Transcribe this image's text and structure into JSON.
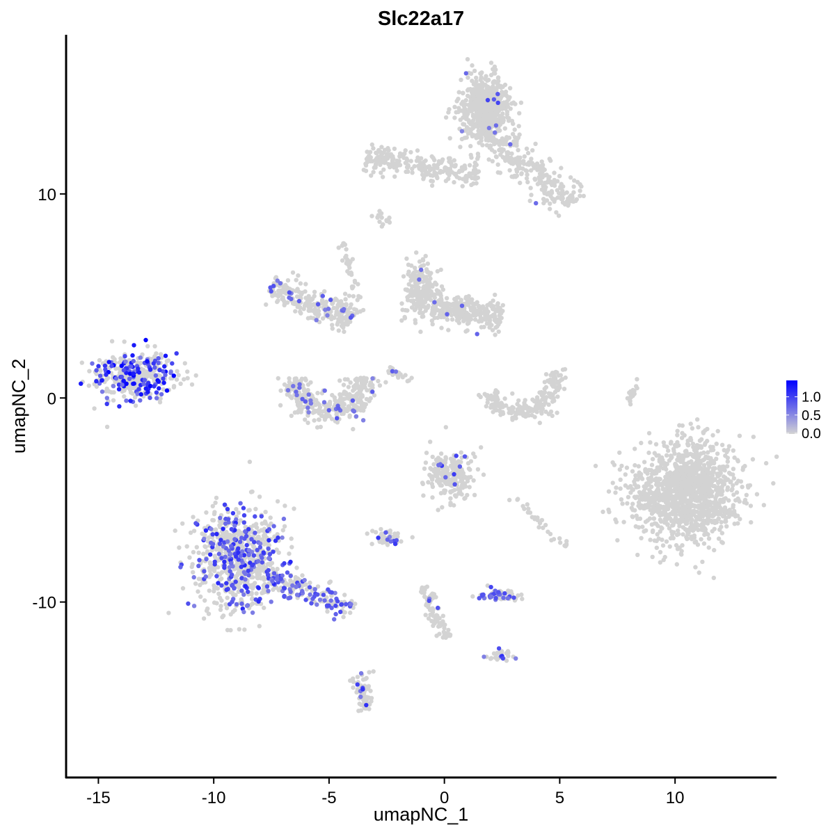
{
  "chart_data": {
    "type": "scatter",
    "title": "Slc22a17",
    "xlabel": "umapNC_1",
    "ylabel": "umapNC_2",
    "xlim": [
      -16.4,
      14.4
    ],
    "ylim": [
      -18.6,
      17.8
    ],
    "xticks": [
      -15,
      -10,
      -5,
      0,
      5,
      10
    ],
    "yticks": [
      -10,
      0,
      10
    ],
    "grid": false,
    "colors": {
      "low": "#d3d3d3",
      "high": "#0000ff"
    },
    "legend": {
      "position": "right",
      "ticks": [
        "1.0",
        "0.5",
        "0.0"
      ],
      "tick_values": [
        1.0,
        0.5,
        0.0
      ],
      "range": [
        0,
        1.45
      ]
    },
    "clusters": [
      {
        "shape": "blob",
        "center": [
          -13.3,
          1.1
        ],
        "spread": [
          0.85,
          0.6
        ],
        "n": 380,
        "expressing_fraction": 0.35,
        "max_value": 1.45
      },
      {
        "shape": "blob",
        "center": [
          -8.9,
          -7.9
        ],
        "spread": [
          0.95,
          1.25
        ],
        "n": 750,
        "expressing_fraction": 0.25,
        "max_value": 1.2
      },
      {
        "shape": "line",
        "from": [
          -7.6,
          -8.7
        ],
        "to": [
          -4.0,
          -10.4
        ],
        "width": 0.3,
        "n": 160,
        "expressing_fraction": 0.4,
        "max_value": 1.0
      },
      {
        "shape": "blob",
        "center": [
          1.8,
          14.0
        ],
        "spread": [
          0.55,
          0.8
        ],
        "n": 650,
        "expressing_fraction": 0.01,
        "max_value": 1.0
      },
      {
        "shape": "line",
        "from": [
          2.3,
          12.6
        ],
        "to": [
          5.6,
          9.4
        ],
        "width": 0.45,
        "n": 220,
        "expressing_fraction": 0.01,
        "max_value": 1.0
      },
      {
        "shape": "line",
        "from": [
          -3.4,
          11.8
        ],
        "to": [
          1.5,
          11.0
        ],
        "width": 0.3,
        "n": 260,
        "expressing_fraction": 0.0,
        "max_value": 0
      },
      {
        "shape": "blob",
        "center": [
          10.5,
          -4.6
        ],
        "spread": [
          1.15,
          1.2
        ],
        "n": 1300,
        "expressing_fraction": 0.0,
        "max_value": 0
      },
      {
        "shape": "blob",
        "center": [
          -1.0,
          5.2
        ],
        "spread": [
          0.35,
          0.7
        ],
        "n": 200,
        "expressing_fraction": 0.01,
        "max_value": 0.8
      },
      {
        "shape": "line",
        "from": [
          -0.5,
          4.5
        ],
        "to": [
          2.5,
          4.0
        ],
        "width": 0.4,
        "n": 260,
        "expressing_fraction": 0.01,
        "max_value": 0.8
      },
      {
        "shape": "line",
        "from": [
          -7.5,
          5.5
        ],
        "to": [
          -4.0,
          3.8
        ],
        "width": 0.35,
        "n": 260,
        "expressing_fraction": 0.06,
        "max_value": 0.9
      },
      {
        "shape": "arc",
        "center": [
          -5.0,
          1.0
        ],
        "radius": [
          1.5,
          1.7
        ],
        "angles": [
          180,
          360
        ],
        "width": 0.35,
        "n": 320,
        "expressing_fraction": 0.08,
        "max_value": 0.9
      },
      {
        "shape": "arc",
        "center": [
          3.3,
          0.8
        ],
        "radius": [
          1.5,
          1.5
        ],
        "angles": [
          200,
          380
        ],
        "width": 0.25,
        "n": 210,
        "expressing_fraction": 0.0,
        "max_value": 0
      },
      {
        "shape": "blob",
        "center": [
          0.3,
          -3.7
        ],
        "spread": [
          0.55,
          0.6
        ],
        "n": 210,
        "expressing_fraction": 0.05,
        "max_value": 1.2
      },
      {
        "shape": "blob",
        "center": [
          -2.5,
          -6.8
        ],
        "spread": [
          0.35,
          0.2
        ],
        "n": 45,
        "expressing_fraction": 0.15,
        "max_value": 1.1
      },
      {
        "shape": "blob",
        "center": [
          2.4,
          -9.7
        ],
        "spread": [
          0.45,
          0.15
        ],
        "n": 65,
        "expressing_fraction": 0.4,
        "max_value": 1.0
      },
      {
        "shape": "line",
        "from": [
          -0.9,
          -9.2
        ],
        "to": [
          0.0,
          -11.8
        ],
        "width": 0.15,
        "n": 85,
        "expressing_fraction": 0.03,
        "max_value": 1.2
      },
      {
        "shape": "line",
        "from": [
          -3.6,
          -13.4
        ],
        "to": [
          -3.4,
          -15.3
        ],
        "width": 0.2,
        "n": 65,
        "expressing_fraction": 0.1,
        "max_value": 1.2
      },
      {
        "shape": "blob",
        "center": [
          2.4,
          -12.6
        ],
        "spread": [
          0.3,
          0.12
        ],
        "n": 25,
        "expressing_fraction": 0.2,
        "max_value": 1.2
      },
      {
        "shape": "line",
        "from": [
          -4.4,
          7.6
        ],
        "to": [
          -3.6,
          4.2
        ],
        "width": 0.1,
        "n": 40,
        "expressing_fraction": 0.0,
        "max_value": 0
      },
      {
        "shape": "line",
        "from": [
          8.0,
          -0.3
        ],
        "to": [
          8.3,
          1.0
        ],
        "width": 0.08,
        "n": 20,
        "expressing_fraction": 0.0,
        "max_value": 0
      },
      {
        "shape": "line",
        "from": [
          -2.5,
          1.5
        ],
        "to": [
          -1.5,
          0.8
        ],
        "width": 0.1,
        "n": 20,
        "expressing_fraction": 0.1,
        "max_value": 0.9
      },
      {
        "shape": "line",
        "from": [
          3.0,
          -4.8
        ],
        "to": [
          5.3,
          -7.5
        ],
        "width": 0.15,
        "n": 30,
        "expressing_fraction": 0.0,
        "max_value": 0
      },
      {
        "shape": "blob",
        "center": [
          -2.7,
          8.8
        ],
        "spread": [
          0.2,
          0.15
        ],
        "n": 15,
        "expressing_fraction": 0.0,
        "max_value": 0
      }
    ]
  }
}
